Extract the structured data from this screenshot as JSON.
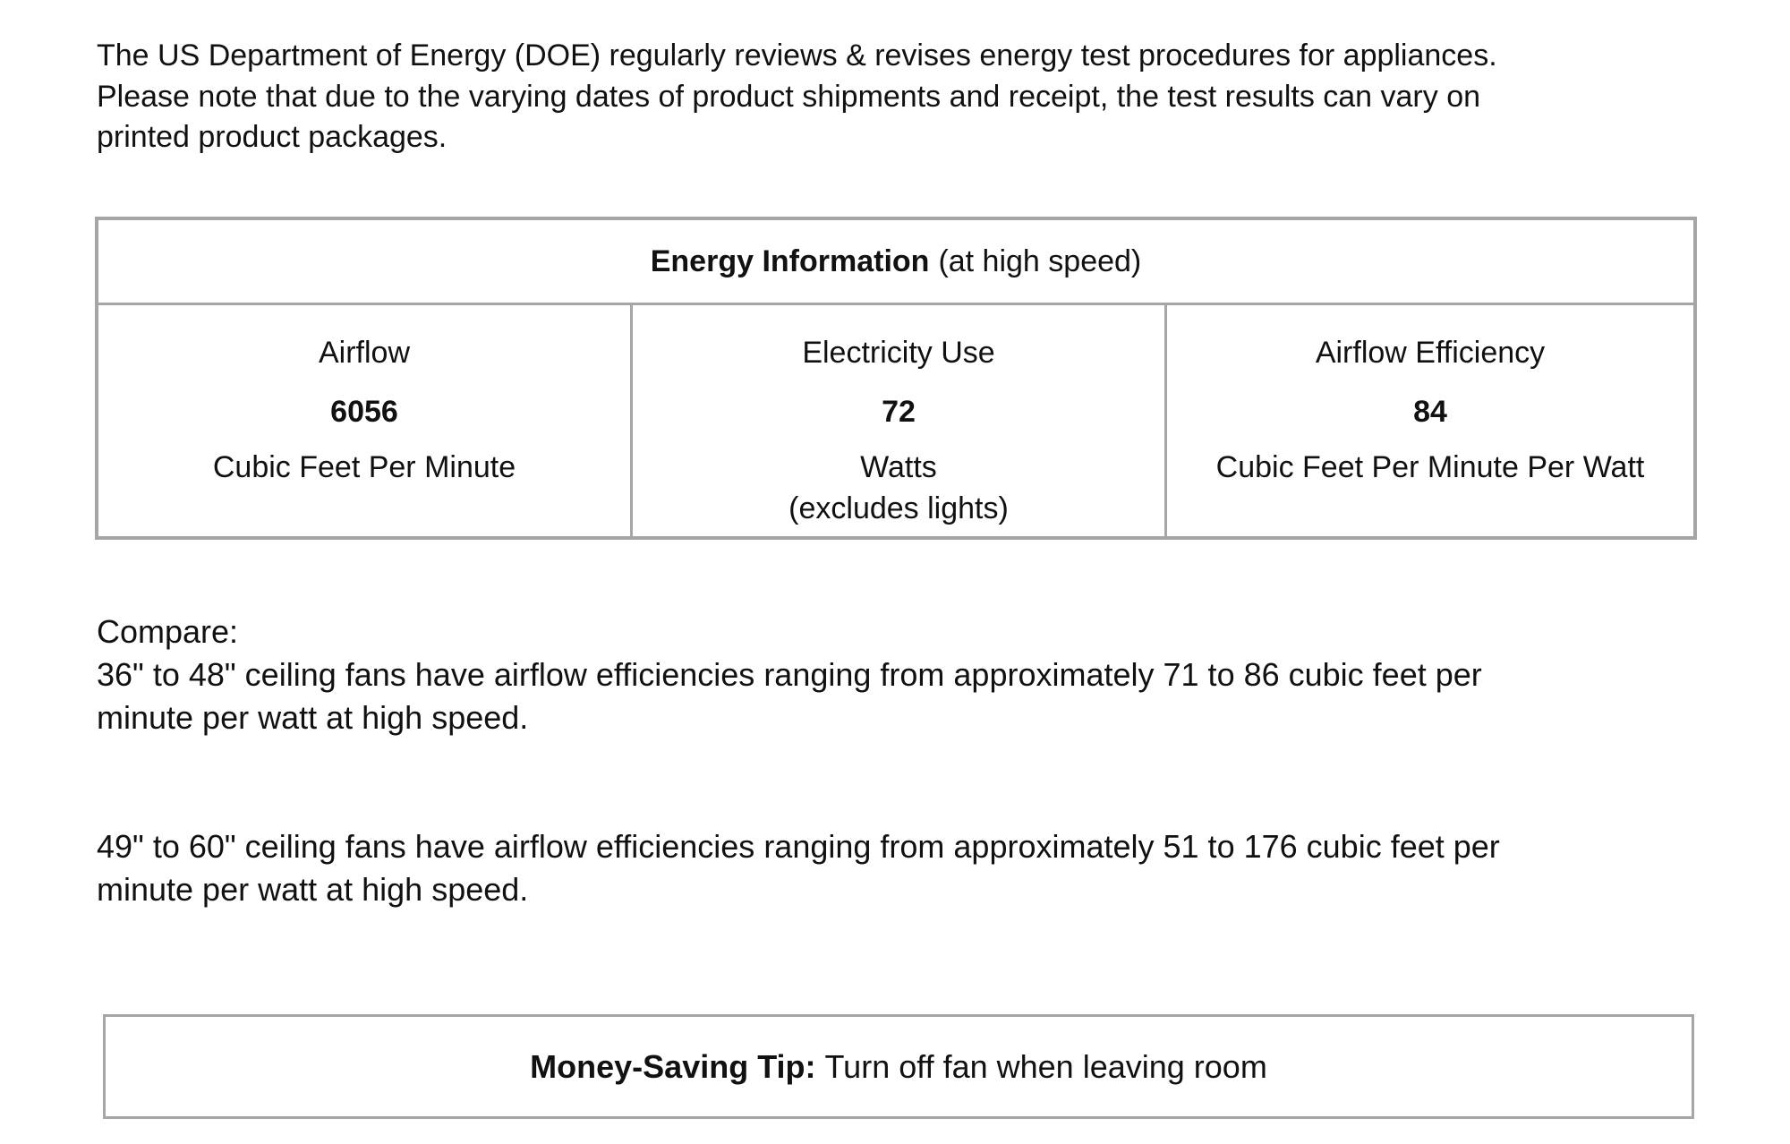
{
  "intro": {
    "lines": [
      "The US Department of Energy (DOE) regularly reviews & revises energy test procedures for appliances.",
      "Please note that due to the varying dates of product shipments and receipt, the test results can vary on",
      "printed product packages."
    ]
  },
  "table": {
    "title_bold": "Energy Information",
    "title_rest": "(at high speed)",
    "columns": [
      {
        "label": "Airflow",
        "value": "6056",
        "unit": "Cubic Feet Per Minute",
        "note": ""
      },
      {
        "label": "Electricity Use",
        "value": "72",
        "unit": "Watts",
        "note": "(excludes lights)"
      },
      {
        "label": "Airflow Efficiency",
        "value": "84",
        "unit": "Cubic Feet Per Minute Per Watt",
        "note": ""
      }
    ]
  },
  "compare": {
    "heading": "Compare:",
    "item1": [
      "36\" to 48\" ceiling fans have airflow efficiencies ranging from approximately 71 to 86 cubic feet per",
      "minute per watt at high speed."
    ],
    "item2": [
      "49\" to 60\" ceiling fans have airflow efficiencies ranging from approximately 51 to 176 cubic feet per",
      "minute per watt at high speed."
    ]
  },
  "tip": {
    "label": "Money-Saving Tip:",
    "text": "Turn off fan when leaving room"
  },
  "colors": {
    "border": "#a6a6a6",
    "text": "#111111"
  }
}
